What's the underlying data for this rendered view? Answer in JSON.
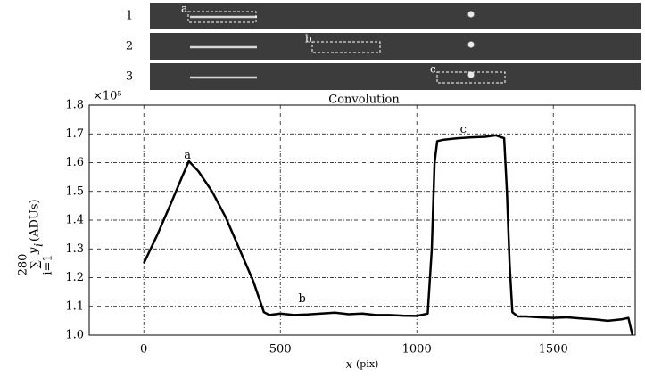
{
  "strips": [
    {
      "row": "1",
      "box": "a"
    },
    {
      "row": "2",
      "box": "b"
    },
    {
      "row": "3",
      "box": "c"
    }
  ],
  "chart_data": {
    "type": "line",
    "title": "Convolution",
    "xlabel": {
      "var": "x",
      "unit": "(pix)"
    },
    "ylabel": {
      "sum_upper": "280",
      "sum_symbol": "∑",
      "sum_lower": "i=1",
      "term": "y",
      "term_index": "i",
      "unit": "(ADUs)"
    },
    "y_multiplier": "×10⁵",
    "xlim": [
      -200,
      1800
    ],
    "xticks": [
      0,
      500,
      1000,
      1500
    ],
    "ylim": [
      1.0,
      1.8
    ],
    "yticks": [
      {
        "value": 1,
        "label": "1.0"
      },
      1.1,
      1.2,
      1.3,
      1.4,
      1.5,
      1.6,
      1.7,
      1.8
    ],
    "grid": true,
    "series": [
      {
        "color": "#000000",
        "x": [
          0,
          50,
          100,
          140,
          165,
          200,
          250,
          300,
          350,
          400,
          440,
          460,
          500,
          550,
          600,
          650,
          700,
          750,
          800,
          850,
          900,
          950,
          1000,
          1040,
          1055,
          1065,
          1075,
          1100,
          1150,
          1200,
          1250,
          1290,
          1320,
          1330,
          1340,
          1350,
          1370,
          1400,
          1450,
          1500,
          1550,
          1600,
          1650,
          1700,
          1750,
          1775,
          1790
        ],
        "values": [
          1.25,
          1.35,
          1.46,
          1.55,
          1.605,
          1.57,
          1.5,
          1.41,
          1.3,
          1.19,
          1.08,
          1.07,
          1.075,
          1.07,
          1.072,
          1.075,
          1.078,
          1.073,
          1.075,
          1.07,
          1.07,
          1.068,
          1.067,
          1.075,
          1.3,
          1.6,
          1.675,
          1.68,
          1.685,
          1.688,
          1.69,
          1.695,
          1.685,
          1.5,
          1.25,
          1.08,
          1.065,
          1.065,
          1.062,
          1.06,
          1.062,
          1.058,
          1.055,
          1.05,
          1.055,
          1.06,
          1.0
        ]
      }
    ],
    "annotations": [
      {
        "text": "a",
        "x": 160,
        "y": 1.625
      },
      {
        "text": "b",
        "x": 580,
        "y": 1.125
      },
      {
        "text": "c",
        "x": 1170,
        "y": 1.715
      }
    ]
  }
}
